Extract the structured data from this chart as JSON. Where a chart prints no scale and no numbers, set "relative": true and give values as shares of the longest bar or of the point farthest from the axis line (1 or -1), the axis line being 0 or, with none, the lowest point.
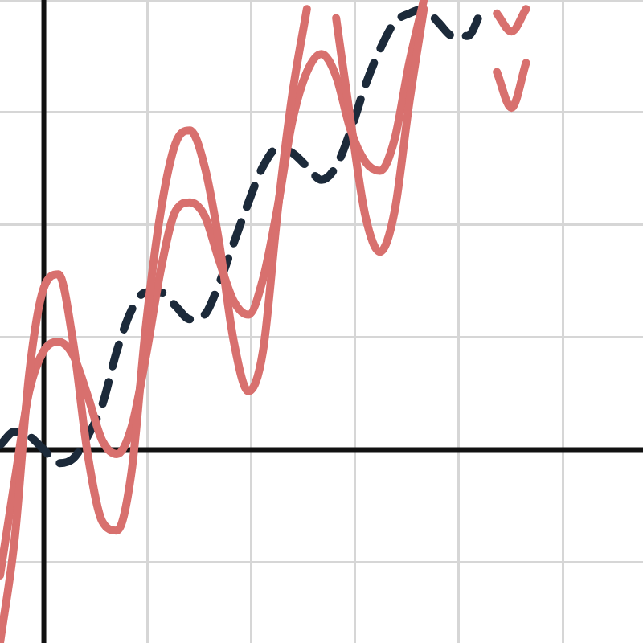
{
  "chart_data": {
    "type": "line",
    "relative": true,
    "grid": true,
    "legend": false,
    "marker": "none",
    "categories": [
      null,
      null,
      null,
      null,
      null,
      null,
      null,
      null,
      null,
      null,
      null,
      null,
      null,
      null,
      null,
      null,
      null,
      null,
      null,
      null,
      null,
      null,
      null,
      null,
      null,
      null,
      null,
      null,
      null,
      null,
      null,
      null,
      null,
      null,
      null,
      null,
      null,
      null,
      null,
      null,
      null,
      null,
      null,
      null,
      null
    ],
    "series": [
      {
        "color": "#d8706e",
        "values": [
          -0.43,
          -0.2,
          0.17,
          0.36,
          0.39,
          0.24,
          -0.01,
          -0.16,
          -0.18,
          -0.05,
          0.28,
          0.53,
          0.68,
          0.71,
          0.63,
          0.46,
          0.24,
          0.13,
          0.22,
          0.53,
          0.79,
          0.98,
          null,
          0.96,
          0.73,
          0.52,
          0.44,
          0.53,
          0.77,
          0.98,
          null,
          null,
          null,
          null,
          0.84,
          0.76,
          0.86,
          null,
          null,
          null,
          null,
          null,
          null,
          null,
          null
        ]
      },
      {
        "color": "#d8706e",
        "values": [
          -0.28,
          -0.07,
          0.13,
          0.22,
          0.24,
          0.21,
          0.12,
          0.02,
          -0.01,
          0.05,
          0.21,
          0.4,
          0.53,
          0.55,
          0.52,
          0.42,
          0.33,
          0.3,
          0.38,
          0.54,
          0.73,
          0.84,
          0.88,
          0.83,
          0.71,
          0.64,
          0.62,
          0.69,
          0.86,
          1,
          null,
          null,
          null,
          null,
          0.97,
          0.93,
          0.98,
          null,
          null,
          null,
          null,
          null,
          null,
          null,
          null
        ]
      },
      {
        "color": "#1c2a3a",
        "line_style": "dashed",
        "values": [
          0.01,
          0.04,
          0.03,
          0,
          -0.03,
          -0.02,
          0.03,
          0.1,
          0.22,
          0.31,
          0.35,
          0.35,
          0.32,
          0.29,
          0.3,
          0.37,
          0.46,
          0.55,
          0.63,
          0.67,
          0.66,
          0.63,
          0.6,
          0.63,
          0.71,
          0.81,
          0.89,
          0.95,
          0.97,
          0.98,
          0.95,
          0.92,
          0.92,
          0.98,
          null,
          null,
          null,
          null,
          null,
          null,
          null,
          null,
          null,
          null,
          null
        ]
      }
    ]
  }
}
